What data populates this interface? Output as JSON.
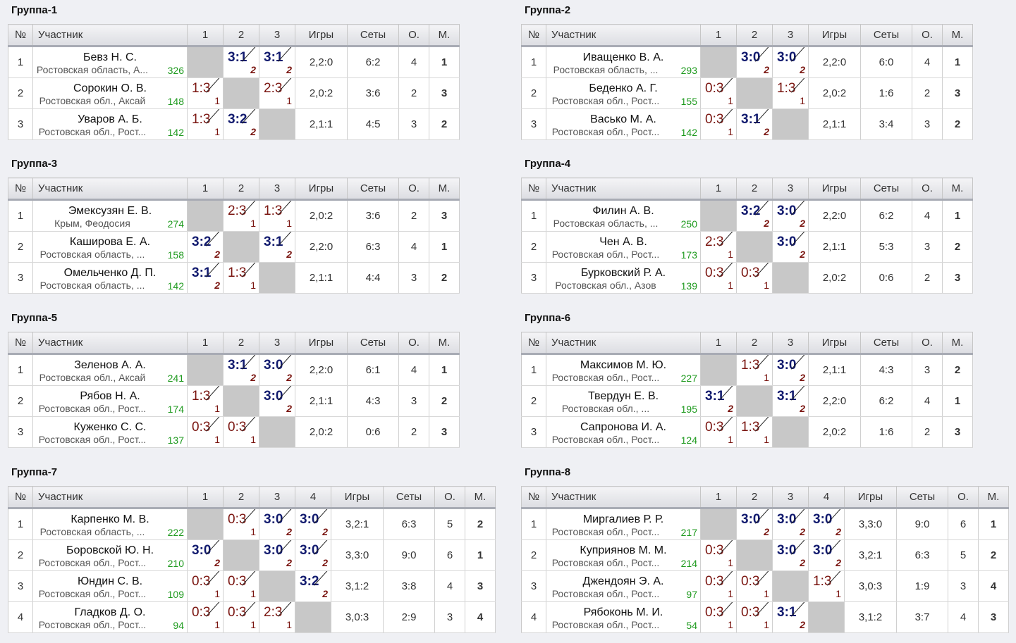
{
  "columns": {
    "num": "№",
    "player": "Участник",
    "games": "Игры",
    "sets": "Сеты",
    "points": "О.",
    "place": "М."
  },
  "groups": [
    {
      "title": "Группа-1",
      "rounds": [
        "1",
        "2",
        "3"
      ],
      "players": [
        {
          "n": "1",
          "name": "Бевз Н. С.",
          "region": "Ростовская область, А...",
          "rating": "326",
          "results": [
            null,
            {
              "s": "3:1",
              "p": "2",
              "w": true
            },
            {
              "s": "3:1",
              "p": "2",
              "w": true
            }
          ],
          "games": "2,2:0",
          "sets": "6:2",
          "points": "4",
          "place": "1"
        },
        {
          "n": "2",
          "name": "Сорокин О. В.",
          "region": "Ростовская обл., Аксай",
          "rating": "148",
          "results": [
            {
              "s": "1:3",
              "p": "1",
              "w": false
            },
            null,
            {
              "s": "2:3",
              "p": "1",
              "w": false
            }
          ],
          "games": "2,0:2",
          "sets": "3:6",
          "points": "2",
          "place": "3"
        },
        {
          "n": "3",
          "name": "Уваров А. Б.",
          "region": "Ростовская обл., Рост...",
          "rating": "142",
          "results": [
            {
              "s": "1:3",
              "p": "1",
              "w": false
            },
            {
              "s": "3:2",
              "p": "2",
              "w": true
            },
            null
          ],
          "games": "2,1:1",
          "sets": "4:5",
          "points": "3",
          "place": "2"
        }
      ]
    },
    {
      "title": "Группа-2",
      "rounds": [
        "1",
        "2",
        "3"
      ],
      "players": [
        {
          "n": "1",
          "name": "Иващенко В. А.",
          "region": "Ростовская область, ...",
          "rating": "293",
          "results": [
            null,
            {
              "s": "3:0",
              "p": "2",
              "w": true
            },
            {
              "s": "3:0",
              "p": "2",
              "w": true
            }
          ],
          "games": "2,2:0",
          "sets": "6:0",
          "points": "4",
          "place": "1"
        },
        {
          "n": "2",
          "name": "Беденко А. Г.",
          "region": "Ростовская обл., Рост...",
          "rating": "155",
          "results": [
            {
              "s": "0:3",
              "p": "1",
              "w": false
            },
            null,
            {
              "s": "1:3",
              "p": "1",
              "w": false
            }
          ],
          "games": "2,0:2",
          "sets": "1:6",
          "points": "2",
          "place": "3"
        },
        {
          "n": "3",
          "name": "Васько М. А.",
          "region": "Ростовская обл., Рост...",
          "rating": "142",
          "results": [
            {
              "s": "0:3",
              "p": "1",
              "w": false
            },
            {
              "s": "3:1",
              "p": "2",
              "w": true
            },
            null
          ],
          "games": "2,1:1",
          "sets": "3:4",
          "points": "3",
          "place": "2"
        }
      ]
    },
    {
      "title": "Группа-3",
      "rounds": [
        "1",
        "2",
        "3"
      ],
      "players": [
        {
          "n": "1",
          "name": "Эмексузян Е. В.",
          "region": "Крым, Феодосия",
          "rating": "274",
          "results": [
            null,
            {
              "s": "2:3",
              "p": "1",
              "w": false
            },
            {
              "s": "1:3",
              "p": "1",
              "w": false
            }
          ],
          "games": "2,0:2",
          "sets": "3:6",
          "points": "2",
          "place": "3"
        },
        {
          "n": "2",
          "name": "Каширова Е. А.",
          "region": "Ростовская область, ...",
          "rating": "158",
          "results": [
            {
              "s": "3:2",
              "p": "2",
              "w": true
            },
            null,
            {
              "s": "3:1",
              "p": "2",
              "w": true
            }
          ],
          "games": "2,2:0",
          "sets": "6:3",
          "points": "4",
          "place": "1"
        },
        {
          "n": "3",
          "name": "Омельченко Д. П.",
          "region": "Ростовская область, ...",
          "rating": "142",
          "results": [
            {
              "s": "3:1",
              "p": "2",
              "w": true
            },
            {
              "s": "1:3",
              "p": "1",
              "w": false
            },
            null
          ],
          "games": "2,1:1",
          "sets": "4:4",
          "points": "3",
          "place": "2"
        }
      ]
    },
    {
      "title": "Группа-4",
      "rounds": [
        "1",
        "2",
        "3"
      ],
      "players": [
        {
          "n": "1",
          "name": "Филин А. В.",
          "region": "Ростовская область, ...",
          "rating": "250",
          "results": [
            null,
            {
              "s": "3:2",
              "p": "2",
              "w": true
            },
            {
              "s": "3:0",
              "p": "2",
              "w": true
            }
          ],
          "games": "2,2:0",
          "sets": "6:2",
          "points": "4",
          "place": "1"
        },
        {
          "n": "2",
          "name": "Чен А. В.",
          "region": "Ростовская обл., Рост...",
          "rating": "173",
          "results": [
            {
              "s": "2:3",
              "p": "1",
              "w": false
            },
            null,
            {
              "s": "3:0",
              "p": "2",
              "w": true
            }
          ],
          "games": "2,1:1",
          "sets": "5:3",
          "points": "3",
          "place": "2"
        },
        {
          "n": "3",
          "name": "Бурковский Р. А.",
          "region": "Ростовская обл., Азов",
          "rating": "139",
          "results": [
            {
              "s": "0:3",
              "p": "1",
              "w": false
            },
            {
              "s": "0:3",
              "p": "1",
              "w": false
            },
            null
          ],
          "games": "2,0:2",
          "sets": "0:6",
          "points": "2",
          "place": "3"
        }
      ]
    },
    {
      "title": "Группа-5",
      "rounds": [
        "1",
        "2",
        "3"
      ],
      "players": [
        {
          "n": "1",
          "name": "Зеленов А. А.",
          "region": "Ростовская обл., Аксай",
          "rating": "241",
          "results": [
            null,
            {
              "s": "3:1",
              "p": "2",
              "w": true
            },
            {
              "s": "3:0",
              "p": "2",
              "w": true
            }
          ],
          "games": "2,2:0",
          "sets": "6:1",
          "points": "4",
          "place": "1"
        },
        {
          "n": "2",
          "name": "Рябов Н. А.",
          "region": "Ростовская обл., Рост...",
          "rating": "174",
          "results": [
            {
              "s": "1:3",
              "p": "1",
              "w": false
            },
            null,
            {
              "s": "3:0",
              "p": "2",
              "w": true
            }
          ],
          "games": "2,1:1",
          "sets": "4:3",
          "points": "3",
          "place": "2"
        },
        {
          "n": "3",
          "name": "Куженко С. С.",
          "region": "Ростовская обл., Рост...",
          "rating": "137",
          "results": [
            {
              "s": "0:3",
              "p": "1",
              "w": false
            },
            {
              "s": "0:3",
              "p": "1",
              "w": false
            },
            null
          ],
          "games": "2,0:2",
          "sets": "0:6",
          "points": "2",
          "place": "3"
        }
      ]
    },
    {
      "title": "Группа-6",
      "rounds": [
        "1",
        "2",
        "3"
      ],
      "players": [
        {
          "n": "1",
          "name": "Максимов М. Ю.",
          "region": "Ростовская обл., Рост...",
          "rating": "227",
          "results": [
            null,
            {
              "s": "1:3",
              "p": "1",
              "w": false
            },
            {
              "s": "3:0",
              "p": "2",
              "w": true
            }
          ],
          "games": "2,1:1",
          "sets": "4:3",
          "points": "3",
          "place": "2"
        },
        {
          "n": "2",
          "name": "Твердун Е. В.",
          "region": "Ростовская обл., ...",
          "rating": "195",
          "results": [
            {
              "s": "3:1",
              "p": "2",
              "w": true
            },
            null,
            {
              "s": "3:1",
              "p": "2",
              "w": true
            }
          ],
          "games": "2,2:0",
          "sets": "6:2",
          "points": "4",
          "place": "1"
        },
        {
          "n": "3",
          "name": "Сапронова И. А.",
          "region": "Ростовская обл., Рост...",
          "rating": "124",
          "results": [
            {
              "s": "0:3",
              "p": "1",
              "w": false
            },
            {
              "s": "1:3",
              "p": "1",
              "w": false
            },
            null
          ],
          "games": "2,0:2",
          "sets": "1:6",
          "points": "2",
          "place": "3"
        }
      ]
    },
    {
      "title": "Группа-7",
      "rounds": [
        "1",
        "2",
        "3",
        "4"
      ],
      "players": [
        {
          "n": "1",
          "name": "Карпенко М. В.",
          "region": "Ростовская область, ...",
          "rating": "222",
          "results": [
            null,
            {
              "s": "0:3",
              "p": "1",
              "w": false
            },
            {
              "s": "3:0",
              "p": "2",
              "w": true
            },
            {
              "s": "3:0",
              "p": "2",
              "w": true
            }
          ],
          "games": "3,2:1",
          "sets": "6:3",
          "points": "5",
          "place": "2"
        },
        {
          "n": "2",
          "name": "Боровской Ю. Н.",
          "region": "Ростовская обл., Рост...",
          "rating": "210",
          "results": [
            {
              "s": "3:0",
              "p": "2",
              "w": true
            },
            null,
            {
              "s": "3:0",
              "p": "2",
              "w": true
            },
            {
              "s": "3:0",
              "p": "2",
              "w": true
            }
          ],
          "games": "3,3:0",
          "sets": "9:0",
          "points": "6",
          "place": "1"
        },
        {
          "n": "3",
          "name": "Юндин С. В.",
          "region": "Ростовская обл., Рост...",
          "rating": "109",
          "results": [
            {
              "s": "0:3",
              "p": "1",
              "w": false
            },
            {
              "s": "0:3",
              "p": "1",
              "w": false
            },
            null,
            {
              "s": "3:2",
              "p": "2",
              "w": true
            }
          ],
          "games": "3,1:2",
          "sets": "3:8",
          "points": "4",
          "place": "3"
        },
        {
          "n": "4",
          "name": "Гладков Д. О.",
          "region": "Ростовская обл., Рост...",
          "rating": "94",
          "results": [
            {
              "s": "0:3",
              "p": "1",
              "w": false
            },
            {
              "s": "0:3",
              "p": "1",
              "w": false
            },
            {
              "s": "2:3",
              "p": "1",
              "w": false
            },
            null
          ],
          "games": "3,0:3",
          "sets": "2:9",
          "points": "3",
          "place": "4"
        }
      ]
    },
    {
      "title": "Группа-8",
      "rounds": [
        "1",
        "2",
        "3",
        "4"
      ],
      "players": [
        {
          "n": "1",
          "name": "Миргалиев Р. Р.",
          "region": "Ростовская обл., Рост...",
          "rating": "217",
          "results": [
            null,
            {
              "s": "3:0",
              "p": "2",
              "w": true
            },
            {
              "s": "3:0",
              "p": "2",
              "w": true
            },
            {
              "s": "3:0",
              "p": "2",
              "w": true
            }
          ],
          "games": "3,3:0",
          "sets": "9:0",
          "points": "6",
          "place": "1"
        },
        {
          "n": "2",
          "name": "Куприянов М. М.",
          "region": "Ростовская обл., Рост...",
          "rating": "214",
          "results": [
            {
              "s": "0:3",
              "p": "1",
              "w": false
            },
            null,
            {
              "s": "3:0",
              "p": "2",
              "w": true
            },
            {
              "s": "3:0",
              "p": "2",
              "w": true
            }
          ],
          "games": "3,2:1",
          "sets": "6:3",
          "points": "5",
          "place": "2"
        },
        {
          "n": "3",
          "name": "Джендоян Э. А.",
          "region": "Ростовская обл., Рост...",
          "rating": "97",
          "results": [
            {
              "s": "0:3",
              "p": "1",
              "w": false
            },
            {
              "s": "0:3",
              "p": "1",
              "w": false
            },
            null,
            {
              "s": "1:3",
              "p": "1",
              "w": false
            }
          ],
          "games": "3,0:3",
          "sets": "1:9",
          "points": "3",
          "place": "4"
        },
        {
          "n": "4",
          "name": "Рябоконь М. И.",
          "region": "Ростовская обл., Рост...",
          "rating": "54",
          "results": [
            {
              "s": "0:3",
              "p": "1",
              "w": false
            },
            {
              "s": "0:3",
              "p": "1",
              "w": false
            },
            {
              "s": "3:1",
              "p": "2",
              "w": true
            },
            null
          ],
          "games": "3,1:2",
          "sets": "3:7",
          "points": "4",
          "place": "3"
        }
      ]
    }
  ]
}
